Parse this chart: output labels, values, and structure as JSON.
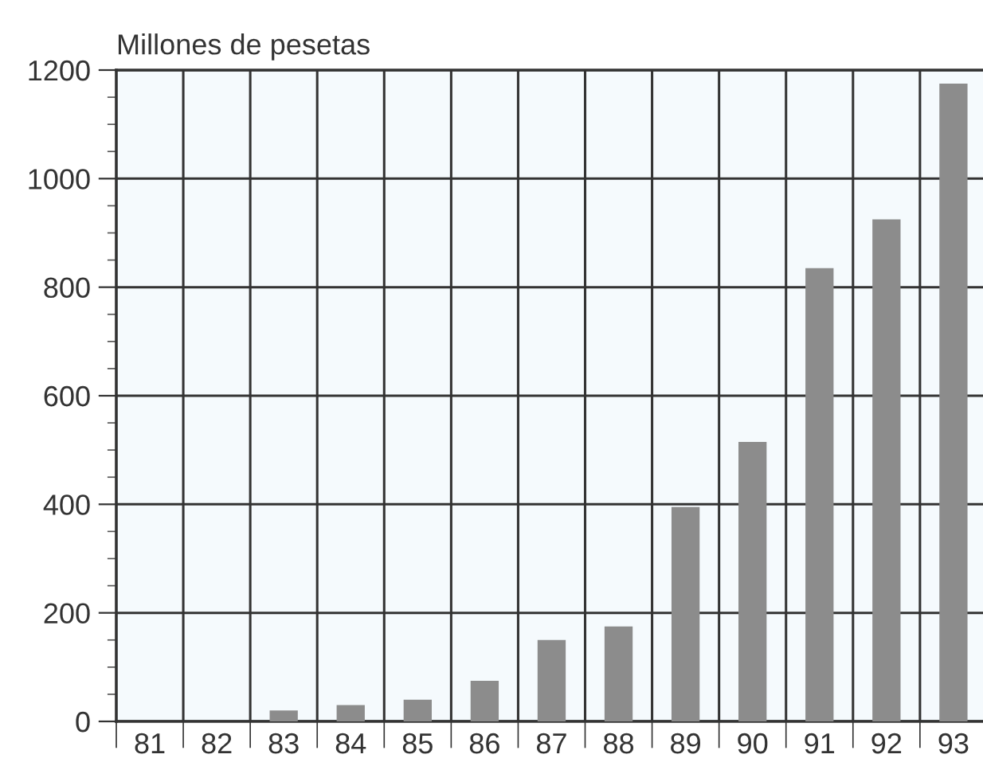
{
  "chart_data": {
    "type": "bar",
    "ylabel": "Millones de pesetas",
    "categories": [
      "81",
      "82",
      "83",
      "84",
      "85",
      "86",
      "87",
      "88",
      "89",
      "90",
      "91",
      "92",
      "93"
    ],
    "values": [
      0,
      0,
      20,
      30,
      40,
      75,
      150,
      175,
      395,
      515,
      835,
      925,
      1175
    ],
    "color": "#8c8c8c",
    "ylim": [
      0,
      1200
    ],
    "yticks": [
      0,
      200,
      400,
      600,
      800,
      1000,
      1200
    ],
    "grid": true
  }
}
